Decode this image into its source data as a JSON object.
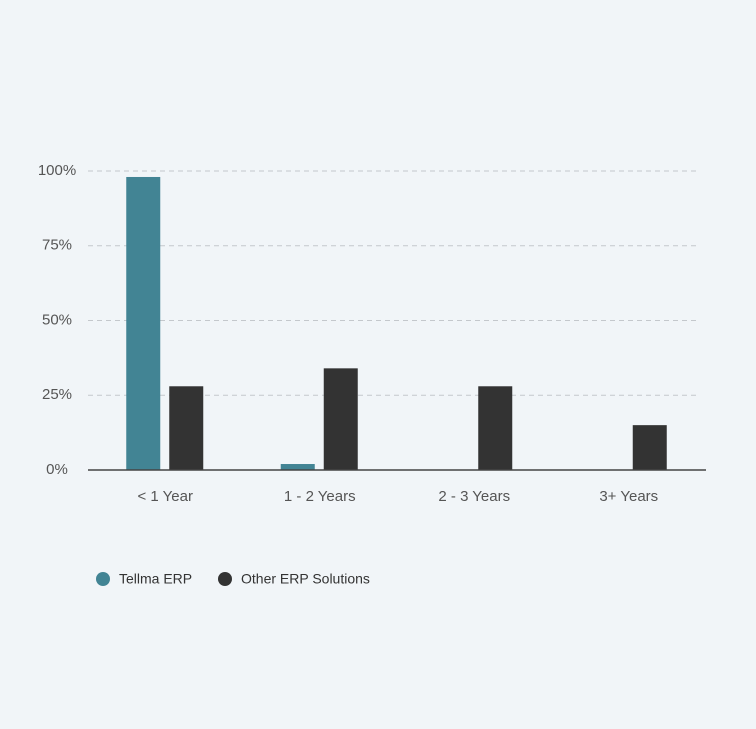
{
  "chart_data": {
    "type": "bar",
    "categories": [
      "< 1 Year",
      "1 - 2 Years",
      "2 - 3 Years",
      "3+ Years"
    ],
    "series": [
      {
        "name": "Tellma ERP",
        "color": "#428494",
        "values": [
          98,
          2,
          0,
          0
        ]
      },
      {
        "name": "Other ERP Solutions",
        "color": "#333333",
        "values": [
          28,
          34,
          28,
          15
        ]
      }
    ],
    "ylim": [
      0,
      100
    ],
    "yticks": [
      {
        "value": 0,
        "label": "0%"
      },
      {
        "value": 25,
        "label": "25%"
      },
      {
        "value": 50,
        "label": "50%"
      },
      {
        "value": 75,
        "label": "75%"
      },
      {
        "value": 100,
        "label": "100%"
      }
    ],
    "grid": true
  }
}
